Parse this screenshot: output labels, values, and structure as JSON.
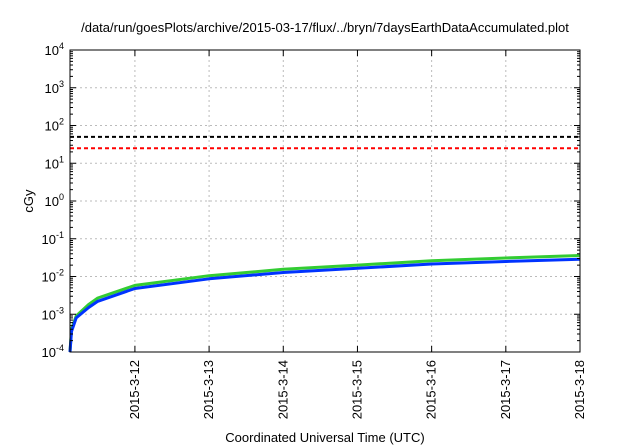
{
  "chart_data": {
    "type": "line",
    "title": "/data/run/goesPlots/archive/2015-03-17/flux/../bryn/7daysEarthDataAccumulated.plot",
    "xlabel": "Coordinated Universal Time (UTC)",
    "ylabel": "cGy",
    "yscale": "log",
    "ylim": [
      0.0001,
      10000
    ],
    "grid": true,
    "x_ticks": [
      "2015-3-12",
      "2015-3-13",
      "2015-3-14",
      "2015-3-15",
      "2015-3-16",
      "2015-3-17",
      "2015-3-18"
    ],
    "xlim": [
      "2015-03-11T03:00",
      "2015-03-18T00:00"
    ],
    "y_ticks": [
      {
        "base": "10",
        "exp": "-4",
        "value": 0.0001
      },
      {
        "base": "10",
        "exp": "-3",
        "value": 0.001
      },
      {
        "base": "10",
        "exp": "-2",
        "value": 0.01
      },
      {
        "base": "10",
        "exp": "-1",
        "value": 0.1
      },
      {
        "base": "10",
        "exp": "0",
        "value": 1
      },
      {
        "base": "10",
        "exp": "1",
        "value": 10
      },
      {
        "base": "10",
        "exp": "2",
        "value": 100
      },
      {
        "base": "10",
        "exp": "3",
        "value": 1000
      },
      {
        "base": "10",
        "exp": "4",
        "value": 10000
      }
    ],
    "reference_lines": [
      {
        "value": 50,
        "color": "#000000",
        "style": "dashed"
      },
      {
        "value": 25,
        "color": "#ff0000",
        "style": "dashed"
      }
    ],
    "series": [
      {
        "color": "#33cc33",
        "x": [
          "2015-03-11T03:00",
          "2015-03-11T03:30",
          "2015-03-11T05:00",
          "2015-03-11T09:00",
          "2015-03-11T12:00",
          "2015-03-12T00:00",
          "2015-03-13T00:00",
          "2015-03-14T00:00",
          "2015-03-15T00:00",
          "2015-03-16T00:00",
          "2015-03-17T00:00",
          "2015-03-18T00:00"
        ],
        "values": [
          0.0001,
          0.0004,
          0.0009,
          0.0018,
          0.0027,
          0.0058,
          0.0105,
          0.0155,
          0.02,
          0.026,
          0.031,
          0.036
        ]
      },
      {
        "color": "#0033ff",
        "x": [
          "2015-03-11T03:00",
          "2015-03-11T03:30",
          "2015-03-11T05:00",
          "2015-03-11T09:00",
          "2015-03-11T12:00",
          "2015-03-12T00:00",
          "2015-03-13T00:00",
          "2015-03-14T00:00",
          "2015-03-15T00:00",
          "2015-03-16T00:00",
          "2015-03-17T00:00",
          "2015-03-18T00:00"
        ],
        "values": [
          0.0001,
          0.00035,
          0.0008,
          0.0015,
          0.0022,
          0.0048,
          0.0087,
          0.0128,
          0.0165,
          0.0215,
          0.025,
          0.0285
        ]
      }
    ]
  }
}
